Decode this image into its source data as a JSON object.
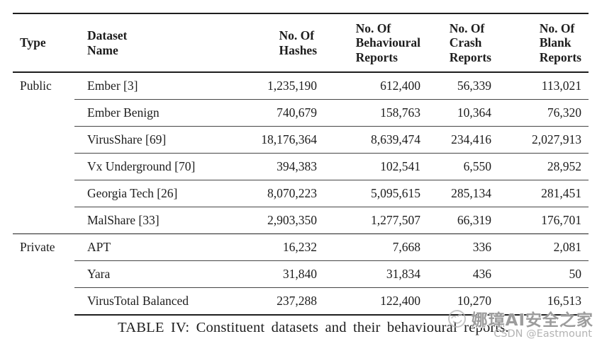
{
  "table": {
    "caption": "TABLE IV: Constituent datasets and their behavioural reports.",
    "columns": [
      {
        "label": "Type"
      },
      {
        "label": "Dataset\nName"
      },
      {
        "label": "No. Of\nHashes"
      },
      {
        "label": "No. Of\nBehavioural\nReports"
      },
      {
        "label": "No. Of\nCrash\nReports"
      },
      {
        "label": "No. Of\nBlank\nReports"
      }
    ],
    "rows": [
      {
        "type_label": "Public",
        "cells": [
          "Ember [3]",
          "1,235,190",
          "612,400",
          "56,339",
          "113,021"
        ],
        "rule_after": "partial"
      },
      {
        "type_label": "",
        "cells": [
          "Ember Benign",
          "740,679",
          "158,763",
          "10,364",
          "76,320"
        ],
        "rule_after": "partial"
      },
      {
        "type_label": "",
        "cells": [
          "VirusShare [69]",
          "18,176,364",
          "8,639,474",
          "234,416",
          "2,027,913"
        ],
        "rule_after": "partial"
      },
      {
        "type_label": "",
        "cells": [
          "Vx Underground [70]",
          "394,383",
          "102,541",
          "6,550",
          "28,952"
        ],
        "rule_after": "partial"
      },
      {
        "type_label": "",
        "cells": [
          "Georgia Tech [26]",
          "8,070,223",
          "5,095,615",
          "285,134",
          "281,451"
        ],
        "rule_after": "partial"
      },
      {
        "type_label": "",
        "cells": [
          "MalShare [33]",
          "2,903,350",
          "1,277,507",
          "66,319",
          "176,701"
        ],
        "rule_after": "full"
      },
      {
        "type_label": "Private",
        "cells": [
          "APT",
          "16,232",
          "7,668",
          "336",
          "2,081"
        ],
        "rule_after": "partial"
      },
      {
        "type_label": "",
        "cells": [
          "Yara",
          "31,840",
          "31,834",
          "436",
          "50"
        ],
        "rule_after": "partial"
      },
      {
        "type_label": "",
        "cells": [
          "VirusTotal Balanced",
          "237,288",
          "122,400",
          "10,270",
          "16,513"
        ],
        "rule_after": "bottom"
      }
    ]
  },
  "watermark": {
    "brand": "娜璋AI安全之家",
    "subtitle": "CSDN @Eastmount",
    "emoji": "smiley-face",
    "brand_color": "#9c9c9c",
    "subtitle_color": "#b3b3b3"
  }
}
